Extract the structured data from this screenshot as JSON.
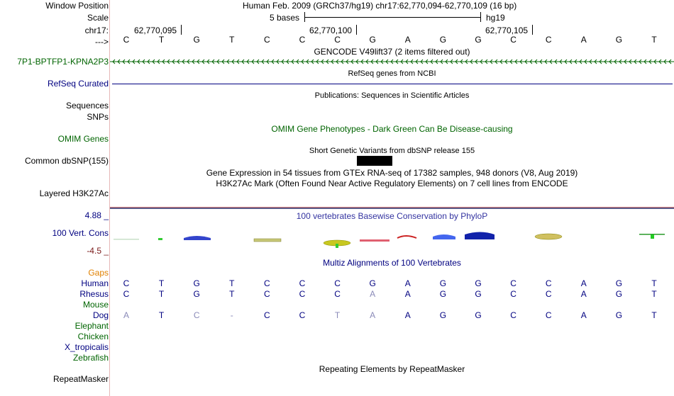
{
  "labels": {
    "window_position": "Window Position",
    "scale": "Scale",
    "chrom": "chr17:",
    "arrow": "--->",
    "gencode_gene": "7P1-BPTFP1-KPNA2P3",
    "refseq": "RefSeq Curated",
    "sequences": "Sequences",
    "snps": "SNPs",
    "omim": "OMIM Genes",
    "dbsnp": "Common dbSNP(155)",
    "layered": "Layered H3K27Ac",
    "cons_max": "4.88 _",
    "cons_name": "100 Vert. Cons",
    "cons_min": "-4.5 _",
    "gaps": "Gaps",
    "repeatmasker": "RepeatMasker"
  },
  "header": {
    "position": "Human Feb. 2009 (GRCh37/hg19)   chr17:62,770,094-62,770,109 (16 bp)",
    "scale_text": "5 bases",
    "assembly": "hg19",
    "coords": [
      "62,770,095",
      "62,770,100",
      "62,770,105"
    ]
  },
  "reference_bases": [
    "C",
    "T",
    "G",
    "T",
    "C",
    "C",
    "C",
    "G",
    "A",
    "G",
    "G",
    "C",
    "C",
    "A",
    "G",
    "T"
  ],
  "tracks": {
    "gencode": "GENCODE V49lift37 (2 items filtered out)",
    "refseq": "RefSeq genes from NCBI",
    "publications": "Publications: Sequences in Scientific Articles",
    "omim": "OMIM Gene Phenotypes - Dark Green Can Be Disease-causing",
    "dbsnp": "Short Genetic Variants from dbSNP release 155",
    "gtex": "Gene Expression in 54 tissues from GTEx RNA-seq of 17382 samples, 948 donors (V8, Aug 2019)",
    "h3k27ac": "H3K27Ac Mark (Often Found Near Active Regulatory Elements) on 7 cell lines from ENCODE",
    "phylop": "100 vertebrates Basewise Conservation by PhyloP",
    "multiz": "Multiz Alignments of 100 Vertebrates",
    "repeats": "Repeating Elements by RepeatMasker"
  },
  "species": [
    {
      "name": "Human",
      "bases": [
        "C",
        "T",
        "G",
        "T",
        "C",
        "C",
        "C",
        "G",
        "A",
        "G",
        "G",
        "C",
        "C",
        "A",
        "G",
        "T"
      ]
    },
    {
      "name": "Rhesus",
      "bases": [
        "C",
        "T",
        "G",
        "T",
        "C",
        "C",
        "C",
        "A",
        "A",
        "G",
        "G",
        "C",
        "C",
        "A",
        "G",
        "T"
      ]
    },
    {
      "name": "Mouse",
      "bases": []
    },
    {
      "name": "Dog",
      "bases": [
        "A",
        "T",
        "C",
        "-",
        "C",
        "C",
        "T",
        "A",
        "A",
        "G",
        "G",
        "C",
        "C",
        "A",
        "G",
        "T"
      ]
    },
    {
      "name": "Elephant",
      "bases": []
    },
    {
      "name": "Chicken",
      "bases": []
    },
    {
      "name": "X_tropicalis",
      "bases": []
    },
    {
      "name": "Zebrafish",
      "bases": []
    }
  ],
  "colors": {
    "navy": "#000080",
    "green": "#006400",
    "gaps": "#e08000",
    "phylop_label": "#3333a0",
    "cons_min": "#7a1a1a"
  }
}
